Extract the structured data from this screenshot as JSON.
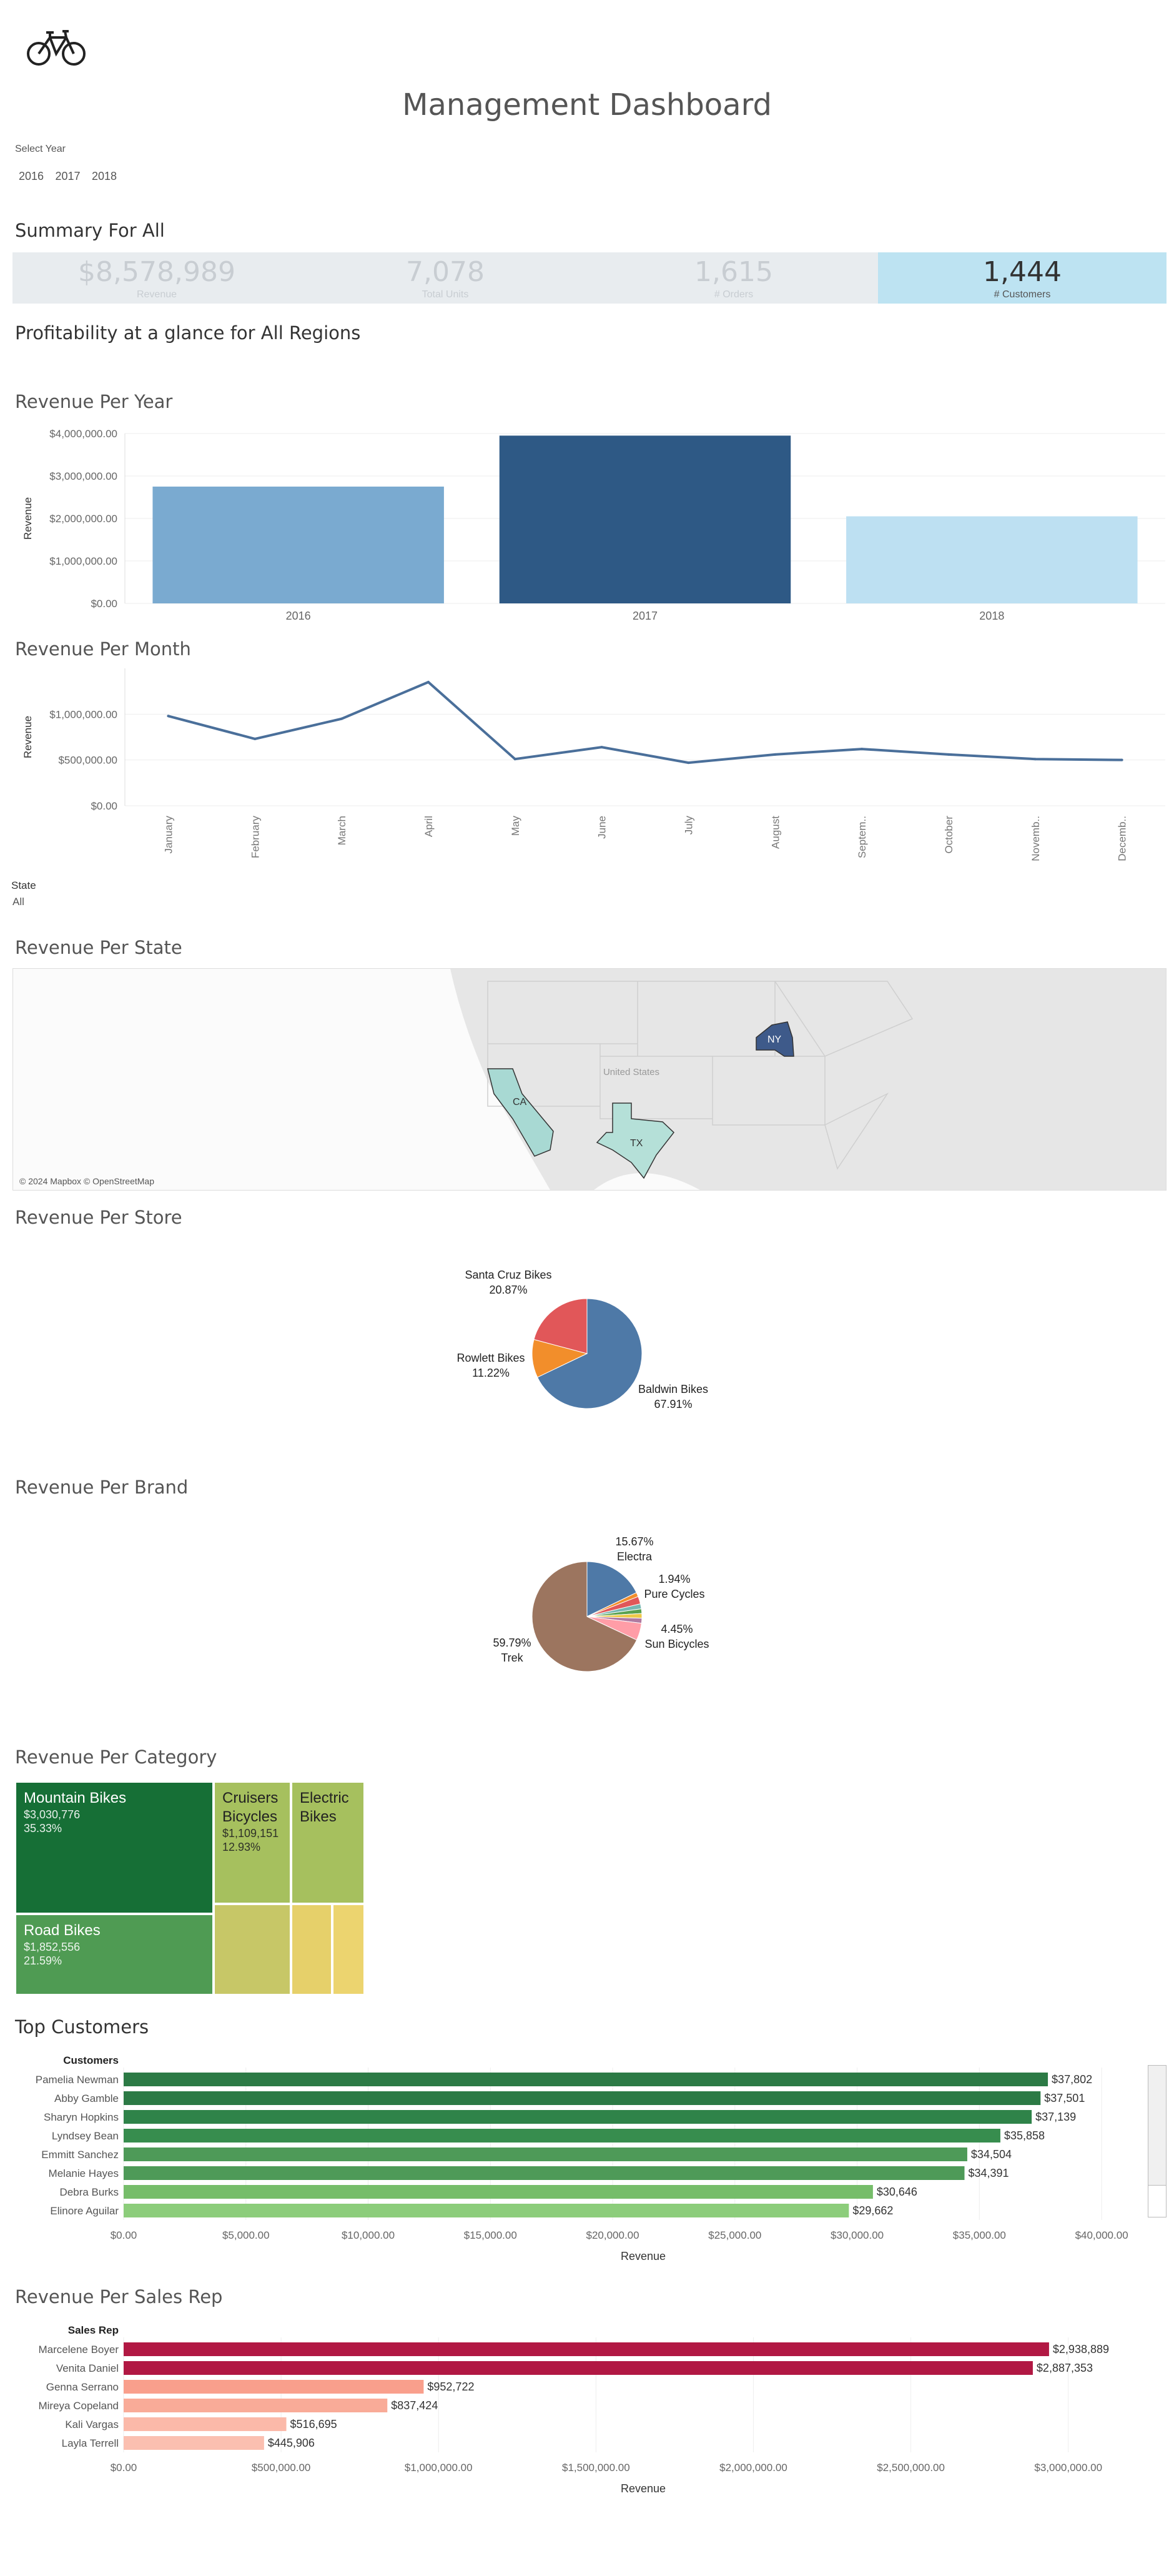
{
  "header": {
    "logo_icon": "bicycle-icon",
    "title": "Management Dashboard"
  },
  "year_filter": {
    "label": "Select Year",
    "options": [
      "2016",
      "2017",
      "2018"
    ]
  },
  "summary": {
    "title": "Summary For All",
    "kpis": [
      {
        "value": "$8,578,989",
        "label": "Revenue",
        "selected": false
      },
      {
        "value": "7,078",
        "label": "Total Units",
        "selected": false
      },
      {
        "value": "1,615",
        "label": "# Orders",
        "selected": false
      },
      {
        "value": "1,444",
        "label": "# Customers",
        "selected": true
      }
    ]
  },
  "profitability": {
    "title": "Profitability at a glance for All Regions"
  },
  "state_filter": {
    "label": "State",
    "value": "All"
  },
  "colors": {
    "year_bars": [
      "#7aaad0",
      "#2e5985",
      "#bde0f2"
    ],
    "line": "#4a6f9a",
    "customers": [
      "#2c7a45",
      "#2c7a45",
      "#2f8349",
      "#378d4e",
      "#4e9a58",
      "#4e9a58",
      "#76bd6a",
      "#8ccd7b"
    ],
    "salesreps": [
      "#b11843",
      "#b11843",
      "#f99f8c",
      "#f9ab98",
      "#fbb9a9",
      "#fbbfb0"
    ],
    "states": {
      "CA": "#a8d9d3",
      "TX": "#b5e0d8",
      "NY": "#3e5a8a"
    }
  },
  "chart_data": [
    {
      "id": "revenue_per_year",
      "type": "bar",
      "title": "Revenue Per Year",
      "ylabel": "Revenue",
      "categories": [
        "2016",
        "2017",
        "2018"
      ],
      "values": [
        2750000,
        3950000,
        2050000
      ],
      "ylim": [
        0,
        4000000
      ],
      "yticks": [
        "$0.00",
        "$1,000,000.00",
        "$2,000,000.00",
        "$3,000,000.00",
        "$4,000,000.00"
      ],
      "grid": true
    },
    {
      "id": "revenue_per_month",
      "type": "line",
      "title": "Revenue Per Month",
      "ylabel": "Revenue",
      "categories": [
        "January",
        "February",
        "March",
        "April",
        "May",
        "June",
        "July",
        "August",
        "Septem..",
        "October",
        "Novemb..",
        "Decemb.."
      ],
      "values": [
        980000,
        730000,
        950000,
        1350000,
        510000,
        640000,
        470000,
        560000,
        620000,
        560000,
        510000,
        500000
      ],
      "ylim": [
        0,
        1500000
      ],
      "yticks": [
        "$0.00",
        "$500,000.00",
        "$1,000,000.00"
      ],
      "grid": true
    },
    {
      "id": "revenue_per_state",
      "type": "map",
      "title": "Revenue Per State",
      "regions": [
        "CA",
        "TX",
        "NY"
      ],
      "country_label": "United States",
      "attribution": "© 2024 Mapbox © OpenStreetMap"
    },
    {
      "id": "revenue_per_store",
      "type": "pie",
      "title": "Revenue Per Store",
      "slices": [
        {
          "name": "Baldwin Bikes",
          "value": 67.91,
          "label": "67.91%",
          "color": "#4e79a7"
        },
        {
          "name": "Rowlett Bikes",
          "value": 11.22,
          "label": "11.22%",
          "color": "#f28e2b"
        },
        {
          "name": "Santa Cruz Bikes",
          "value": 20.87,
          "label": "20.87%",
          "color": "#e15759"
        }
      ]
    },
    {
      "id": "revenue_per_brand",
      "type": "pie",
      "title": "Revenue Per Brand",
      "slices": [
        {
          "name": "Electra",
          "value": 15.67,
          "label": "15.67%",
          "color": "#4e79a7"
        },
        {
          "name": "",
          "value": 1.1,
          "label": "",
          "color": "#f28e2b"
        },
        {
          "name": "Pure Cycles",
          "value": 1.94,
          "label": "1.94%",
          "color": "#e15759"
        },
        {
          "name": "",
          "value": 1.3,
          "label": "",
          "color": "#76b7b2"
        },
        {
          "name": "",
          "value": 1.2,
          "label": "",
          "color": "#59a14f"
        },
        {
          "name": "",
          "value": 1.2,
          "label": "",
          "color": "#edc948"
        },
        {
          "name": "",
          "value": 1.3,
          "label": "",
          "color": "#b07aa1"
        },
        {
          "name": "Sun Bicycles",
          "value": 4.45,
          "label": "4.45%",
          "color": "#ff9da7"
        },
        {
          "name": "Trek",
          "value": 59.79,
          "label": "59.79%",
          "color": "#9c755f"
        }
      ]
    },
    {
      "id": "revenue_per_category",
      "type": "treemap",
      "title": "Revenue Per Category",
      "cells": [
        {
          "name": "Mountain Bikes",
          "value": "$3,030,776",
          "pct": "35.33%",
          "color": "#166f36"
        },
        {
          "name": "Road Bikes",
          "value": "$1,852,556",
          "pct": "21.59%",
          "color": "#4f9b53"
        },
        {
          "name": "Cruisers Bicycles",
          "value": "$1,109,151",
          "pct": "12.93%",
          "color": "#a6c05e"
        },
        {
          "name": "Electric Bikes",
          "value": "",
          "pct": "",
          "color": "#a6c05e"
        },
        {
          "name": "",
          "value": "",
          "pct": "",
          "color": "#c7c767"
        },
        {
          "name": "",
          "value": "",
          "pct": "",
          "color": "#e6d06a"
        },
        {
          "name": "",
          "value": "",
          "pct": "",
          "color": "#ecd46f"
        }
      ]
    },
    {
      "id": "top_customers",
      "type": "bar",
      "orientation": "horizontal",
      "title": "Top Customers",
      "ylabel": "Customers",
      "xlabel": "Revenue",
      "categories": [
        "Pamelia Newman",
        "Abby Gamble",
        "Sharyn Hopkins",
        "Lyndsey Bean",
        "Emmitt Sanchez",
        "Melanie Hayes",
        "Debra Burks",
        "Elinore Aguilar"
      ],
      "values": [
        37802,
        37501,
        37139,
        35858,
        34504,
        34391,
        30646,
        29662
      ],
      "data_labels": [
        "$37,802",
        "$37,501",
        "$37,139",
        "$35,858",
        "$34,504",
        "$34,391",
        "$30,646",
        "$29,662"
      ],
      "xlim": [
        0,
        42500
      ],
      "xticks": [
        0,
        5000,
        10000,
        15000,
        20000,
        25000,
        30000,
        35000,
        40000
      ],
      "xtick_labels": [
        "$0.00",
        "$5,000.00",
        "$10,000.00",
        "$15,000.00",
        "$20,000.00",
        "$25,000.00",
        "$30,000.00",
        "$35,000.00",
        "$40,000.00"
      ]
    },
    {
      "id": "revenue_per_sales_rep",
      "type": "bar",
      "orientation": "horizontal",
      "title": "Revenue Per Sales Rep",
      "ylabel": "Sales Rep",
      "xlabel": "Revenue",
      "categories": [
        "Marcelene Boyer",
        "Venita Daniel",
        "Genna Serrano",
        "Mireya Copeland",
        "Kali Vargas",
        "Layla Terrell"
      ],
      "values": [
        2938889,
        2887353,
        952722,
        837424,
        516695,
        445906
      ],
      "data_labels": [
        "$2,938,889",
        "$2,887,353",
        "$952,722",
        "$837,424",
        "$516,695",
        "$445,906"
      ],
      "xlim": [
        0,
        3300000
      ],
      "xticks": [
        0,
        500000,
        1000000,
        1500000,
        2000000,
        2500000,
        3000000
      ],
      "xtick_labels": [
        "$0.00",
        "$500,000.00",
        "$1,000,000.00",
        "$1,500,000.00",
        "$2,000,000.00",
        "$2,500,000.00",
        "$3,000,000.00"
      ]
    }
  ]
}
